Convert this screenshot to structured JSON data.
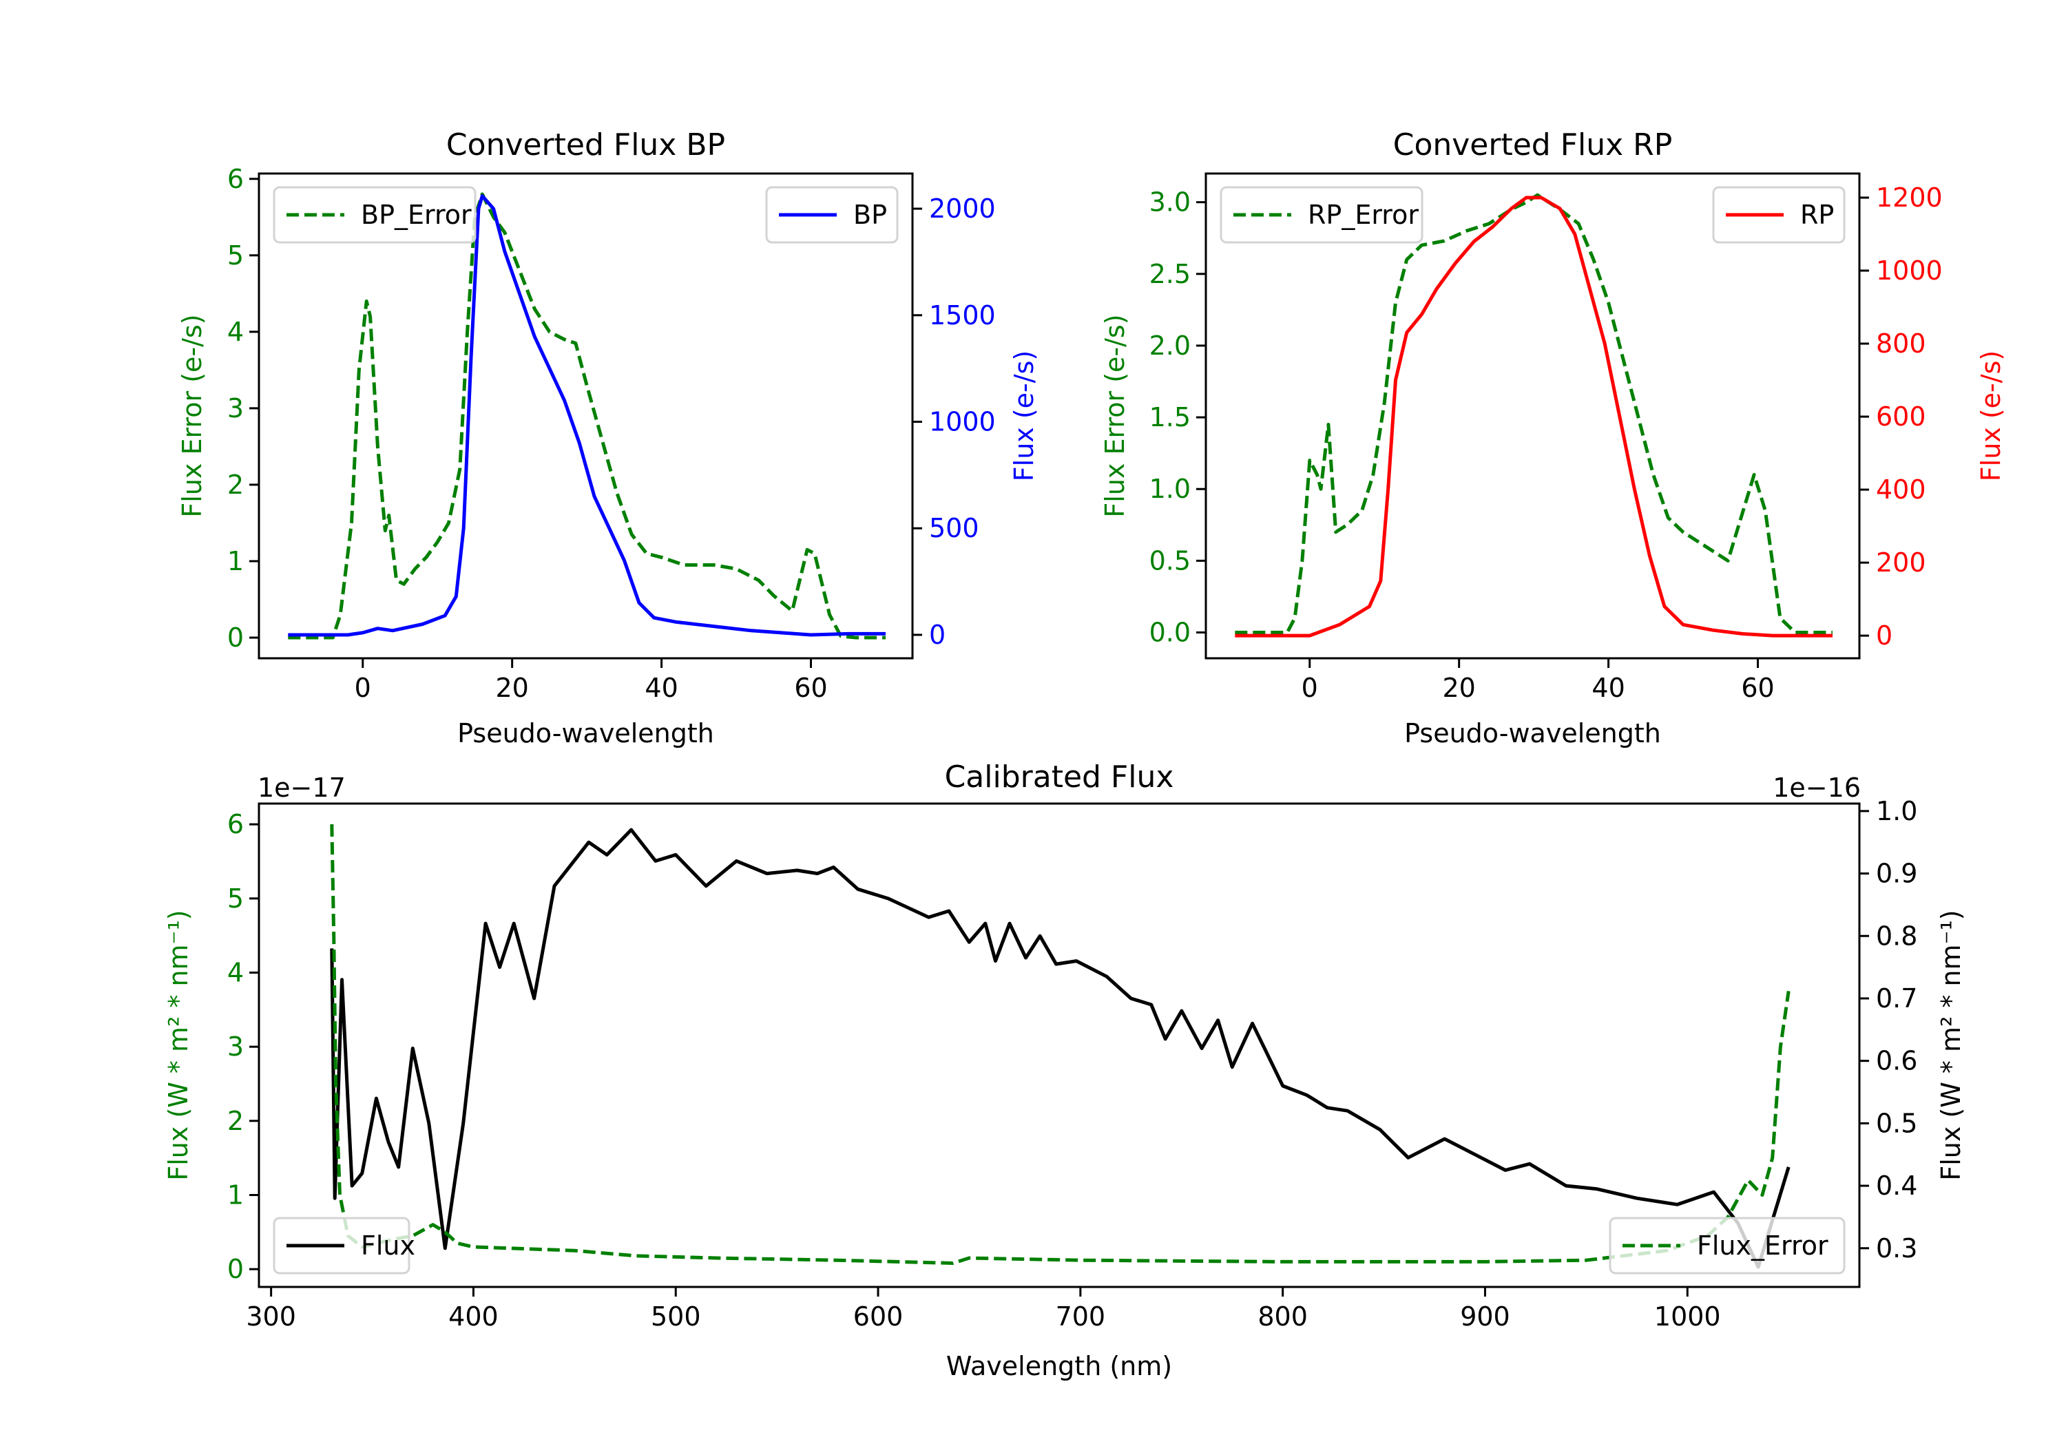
{
  "chart_data": [
    {
      "id": "bp",
      "type": "line",
      "title": "Converted Flux BP",
      "xlabel": "Pseudo-wavelength",
      "ylabel_left": "Flux Error (e-/s)",
      "ylabel_right": "Flux (e-/s)",
      "xlim": [
        -13.9,
        73.6
      ],
      "ylim_left": [
        -0.27,
        6.07
      ],
      "ylim_right": [
        -110,
        2165
      ],
      "xticks": [
        0,
        20,
        40,
        60
      ],
      "yticks_left": [
        0,
        1,
        2,
        3,
        4,
        5,
        6
      ],
      "yticks_right": [
        0,
        500,
        1000,
        1500,
        2000
      ],
      "left_color": "#008000",
      "right_color": "#0000ff",
      "series": [
        {
          "name": "BP_Error",
          "axis": "left",
          "color": "#008000",
          "style": "dashed",
          "legend": "top-left",
          "x": [
            -10,
            -4,
            -3,
            -1.5,
            -0.5,
            0.5,
            1,
            2,
            3,
            3.5,
            4.5,
            5.5,
            7,
            8.5,
            10,
            11.5,
            13,
            14,
            15,
            16,
            17.5,
            19,
            21,
            23,
            25,
            27,
            28.5,
            30,
            32,
            34,
            36,
            38,
            40,
            43,
            47,
            50,
            53,
            55,
            57.5,
            59.5,
            60.5,
            62.5,
            64,
            66,
            70
          ],
          "y": [
            0,
            0,
            0.3,
            1.5,
            3.5,
            4.4,
            4.2,
            2.5,
            1.4,
            1.6,
            0.75,
            0.7,
            0.9,
            1.05,
            1.25,
            1.5,
            2.2,
            4.0,
            5.5,
            5.8,
            5.5,
            5.3,
            4.8,
            4.3,
            4.0,
            3.9,
            3.85,
            3.3,
            2.6,
            1.9,
            1.35,
            1.1,
            1.05,
            0.95,
            0.95,
            0.9,
            0.75,
            0.55,
            0.35,
            1.15,
            1.1,
            0.3,
            0.02,
            0,
            0
          ]
        },
        {
          "name": "BP",
          "axis": "right",
          "color": "#0000ff",
          "style": "solid",
          "legend": "top-right",
          "x": [
            -10,
            -2,
            0,
            2,
            4,
            8,
            11,
            12.5,
            13.5,
            14.5,
            15.5,
            16,
            17.5,
            19,
            21,
            23,
            25,
            27,
            29,
            31,
            33,
            35,
            37,
            39,
            42,
            47,
            52,
            56,
            60,
            65,
            70
          ],
          "y": [
            0,
            0,
            10,
            30,
            20,
            50,
            90,
            180,
            500,
            1300,
            2000,
            2060,
            2000,
            1800,
            1600,
            1400,
            1250,
            1100,
            900,
            650,
            500,
            350,
            150,
            80,
            60,
            40,
            20,
            10,
            0,
            5,
            5
          ]
        }
      ]
    },
    {
      "id": "rp",
      "type": "line",
      "title": "Converted Flux RP",
      "xlabel": "Pseudo-wavelength",
      "ylabel_left": "Flux Error (e-/s)",
      "ylabel_right": "Flux (e-/s)",
      "xlim": [
        -13.9,
        73.6
      ],
      "ylim_left": [
        -0.18,
        3.2
      ],
      "ylim_right": [
        -62,
        1266
      ],
      "xticks": [
        0,
        20,
        40,
        60
      ],
      "yticks_left": [
        0.0,
        0.5,
        1.0,
        1.5,
        2.0,
        2.5,
        3.0
      ],
      "yticks_right": [
        0,
        200,
        400,
        600,
        800,
        1000,
        1200
      ],
      "left_color": "#008000",
      "right_color": "#ff0000",
      "series": [
        {
          "name": "RP_Error",
          "axis": "left",
          "color": "#008000",
          "style": "dashed",
          "legend": "top-left",
          "x": [
            -10,
            -3,
            -2,
            -1,
            0,
            1,
            1.5,
            2.5,
            3.5,
            5,
            7,
            8.5,
            10,
            11.5,
            13,
            15,
            18,
            21,
            24,
            27,
            29,
            30.5,
            33.5,
            36,
            38,
            40,
            42,
            44,
            46,
            48,
            50,
            53,
            56,
            59.5,
            61,
            63,
            65,
            70
          ],
          "y": [
            0,
            0,
            0.1,
            0.5,
            1.2,
            1.1,
            1.0,
            1.45,
            0.7,
            0.75,
            0.85,
            1.1,
            1.6,
            2.3,
            2.6,
            2.7,
            2.73,
            2.8,
            2.85,
            2.95,
            3.0,
            3.05,
            2.95,
            2.85,
            2.6,
            2.3,
            1.9,
            1.5,
            1.1,
            0.8,
            0.7,
            0.6,
            0.5,
            1.1,
            0.85,
            0.1,
            0,
            0
          ]
        },
        {
          "name": "RP",
          "axis": "right",
          "color": "#ff0000",
          "style": "solid",
          "legend": "top-right",
          "x": [
            -10,
            0,
            4,
            8,
            9.5,
            10.5,
            11.5,
            13,
            15,
            17,
            19.5,
            22,
            24.5,
            27,
            29,
            31,
            33.5,
            35.5,
            37.5,
            39.5,
            41.5,
            43.5,
            45.5,
            47.5,
            50,
            54,
            58,
            62,
            70
          ],
          "y": [
            0,
            0,
            30,
            80,
            150,
            400,
            700,
            830,
            880,
            950,
            1020,
            1080,
            1120,
            1170,
            1200,
            1200,
            1170,
            1100,
            950,
            800,
            600,
            400,
            220,
            80,
            30,
            15,
            5,
            0,
            0
          ]
        }
      ]
    },
    {
      "id": "cal",
      "type": "line",
      "title": "Calibrated Flux",
      "xlabel": "Wavelength (nm)",
      "ylabel_left": "Flux (W * m² * nm⁻¹)",
      "ylabel_right": "Flux (W * m² * nm⁻¹)",
      "offset_left": "1e−17",
      "offset_right": "1e−16",
      "xlim": [
        294,
        1085
      ],
      "ylim_left": [
        -0.24,
        6.28
      ],
      "ylim_right": [
        0.238,
        1.012
      ],
      "xticks": [
        300,
        400,
        500,
        600,
        700,
        800,
        900,
        1000
      ],
      "yticks_left": [
        0,
        1,
        2,
        3,
        4,
        5,
        6
      ],
      "yticks_right": [
        "0.3",
        "0.4",
        "0.5",
        "0.6",
        "0.7",
        "0.8",
        "0.9",
        "1.0"
      ],
      "left_color": "#008000",
      "right_color": "#000000",
      "series": [
        {
          "name": "Flux_Error",
          "axis": "left",
          "color": "#008000",
          "style": "dashed",
          "legend": "bottom-right",
          "x": [
            330,
            331,
            332,
            334,
            338,
            345,
            360,
            370,
            380,
            386,
            392,
            400,
            420,
            450,
            480,
            520,
            580,
            637,
            645,
            700,
            800,
            900,
            950,
            990,
            1010,
            1020,
            1030,
            1037,
            1042,
            1046,
            1050
          ],
          "y": [
            6.0,
            4.5,
            2.5,
            1.0,
            0.45,
            0.3,
            0.4,
            0.45,
            0.6,
            0.5,
            0.35,
            0.3,
            0.28,
            0.25,
            0.18,
            0.15,
            0.12,
            0.08,
            0.15,
            0.12,
            0.1,
            0.1,
            0.12,
            0.25,
            0.45,
            0.7,
            1.2,
            1.0,
            1.5,
            3.0,
            3.75
          ]
        },
        {
          "name": "Flux",
          "axis": "right",
          "color": "#000000",
          "style": "solid",
          "legend": "bottom-left",
          "x": [
            330,
            331.5,
            335,
            340,
            345,
            352,
            358,
            363,
            370,
            378,
            386,
            395,
            406,
            413,
            420,
            430,
            440,
            457,
            466,
            478,
            490,
            500,
            515,
            530,
            545,
            560,
            570,
            578,
            590,
            605,
            625,
            635,
            645,
            653,
            658,
            665,
            673,
            680,
            688,
            698,
            713,
            725,
            735,
            742,
            750,
            760,
            768,
            775,
            785,
            800,
            812,
            822,
            832,
            848,
            862,
            880,
            895,
            910,
            922,
            940,
            955,
            975,
            995,
            1013,
            1025,
            1035,
            1050
          ],
          "y": [
            0.78,
            0.38,
            0.73,
            0.4,
            0.42,
            0.54,
            0.47,
            0.43,
            0.62,
            0.5,
            0.3,
            0.5,
            0.82,
            0.75,
            0.82,
            0.7,
            0.88,
            0.95,
            0.93,
            0.97,
            0.92,
            0.93,
            0.88,
            0.92,
            0.9,
            0.905,
            0.9,
            0.91,
            0.875,
            0.86,
            0.83,
            0.84,
            0.79,
            0.82,
            0.76,
            0.82,
            0.765,
            0.8,
            0.755,
            0.76,
            0.735,
            0.7,
            0.69,
            0.635,
            0.68,
            0.62,
            0.665,
            0.59,
            0.66,
            0.56,
            0.545,
            0.525,
            0.52,
            0.49,
            0.445,
            0.475,
            0.45,
            0.425,
            0.435,
            0.4,
            0.395,
            0.38,
            0.37,
            0.39,
            0.34,
            0.27,
            0.43
          ]
        }
      ]
    }
  ]
}
